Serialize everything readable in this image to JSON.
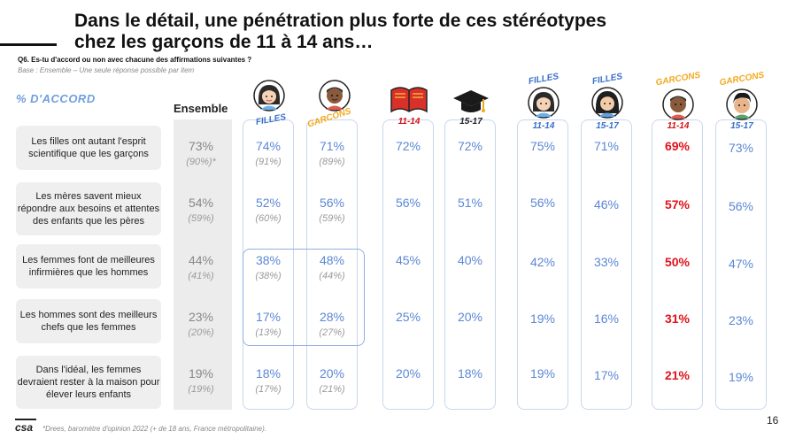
{
  "title_line1": "Dans le détail, une pénétration plus forte de ces stéréotypes",
  "title_line2": "chez les garçons de 11 à 14 ans…",
  "question": "Q6. Es-tu d'accord ou non avec chacune des affirmations suivantes ?",
  "base": "Base : Ensemble – Une seule réponse possible par item",
  "accord_label": "% D'ACCORD",
  "ensemble_label": "Ensemble",
  "col_labels": {
    "filles": "FILLES",
    "garcons": "GARCONS",
    "age_11_14": "11-14",
    "age_15_17": "15-17"
  },
  "statements": [
    "Les filles ont autant l'esprit scientifique que les garçons",
    "Les mères savent mieux répondre aux besoins et attentes des enfants que les pères",
    "Les femmes font de meilleures infirmières que les hommes",
    "Les hommes sont des meilleurs chefs que les femmes",
    "Dans l'idéal, les femmes devraient rester à la maison pour élever leurs enfants"
  ],
  "rows": [
    {
      "ensemble": "73%",
      "ensemble_prev": "(90%)*",
      "filles": "74%",
      "filles_prev": "(91%)",
      "garcons": "71%",
      "garcons_prev": "(89%)",
      "a1114": "72%",
      "a1517": "72%",
      "f1114": "75%",
      "f1517": "71%",
      "g1114": "69%",
      "g1517": "73%"
    },
    {
      "ensemble": "54%",
      "ensemble_prev": "(59%)",
      "filles": "52%",
      "filles_prev": "(60%)",
      "garcons": "56%",
      "garcons_prev": "(59%)",
      "a1114": "56%",
      "a1517": "51%",
      "f1114": "56%",
      "f1517": "46%",
      "g1114": "57%",
      "g1517": "56%"
    },
    {
      "ensemble": "44%",
      "ensemble_prev": "(41%)",
      "filles": "38%",
      "filles_prev": "(38%)",
      "garcons": "48%",
      "garcons_prev": "(44%)",
      "a1114": "45%",
      "a1517": "40%",
      "f1114": "42%",
      "f1517": "33%",
      "g1114": "50%",
      "g1517": "47%"
    },
    {
      "ensemble": "23%",
      "ensemble_prev": "(20%)",
      "filles": "17%",
      "filles_prev": "(13%)",
      "garcons": "28%",
      "garcons_prev": "(27%)",
      "a1114": "25%",
      "a1517": "20%",
      "f1114": "19%",
      "f1517": "16%",
      "g1114": "31%",
      "g1517": "23%"
    },
    {
      "ensemble": "19%",
      "ensemble_prev": "(19%)",
      "filles": "18%",
      "filles_prev": "(17%)",
      "garcons": "20%",
      "garcons_prev": "(21%)",
      "a1114": "20%",
      "a1517": "18%",
      "f1114": "19%",
      "f1517": "17%",
      "g1114": "21%",
      "g1517": "19%"
    }
  ],
  "footnote": "*Drees, baromètre d'opinion 2022 (+ de 18 ans, France métropolitaine).",
  "logo_text": "csa",
  "page_number": "16",
  "colors": {
    "blue": "#5b87d4",
    "red": "#e0121c",
    "orange": "#f2a91e",
    "grey": "#888888"
  }
}
